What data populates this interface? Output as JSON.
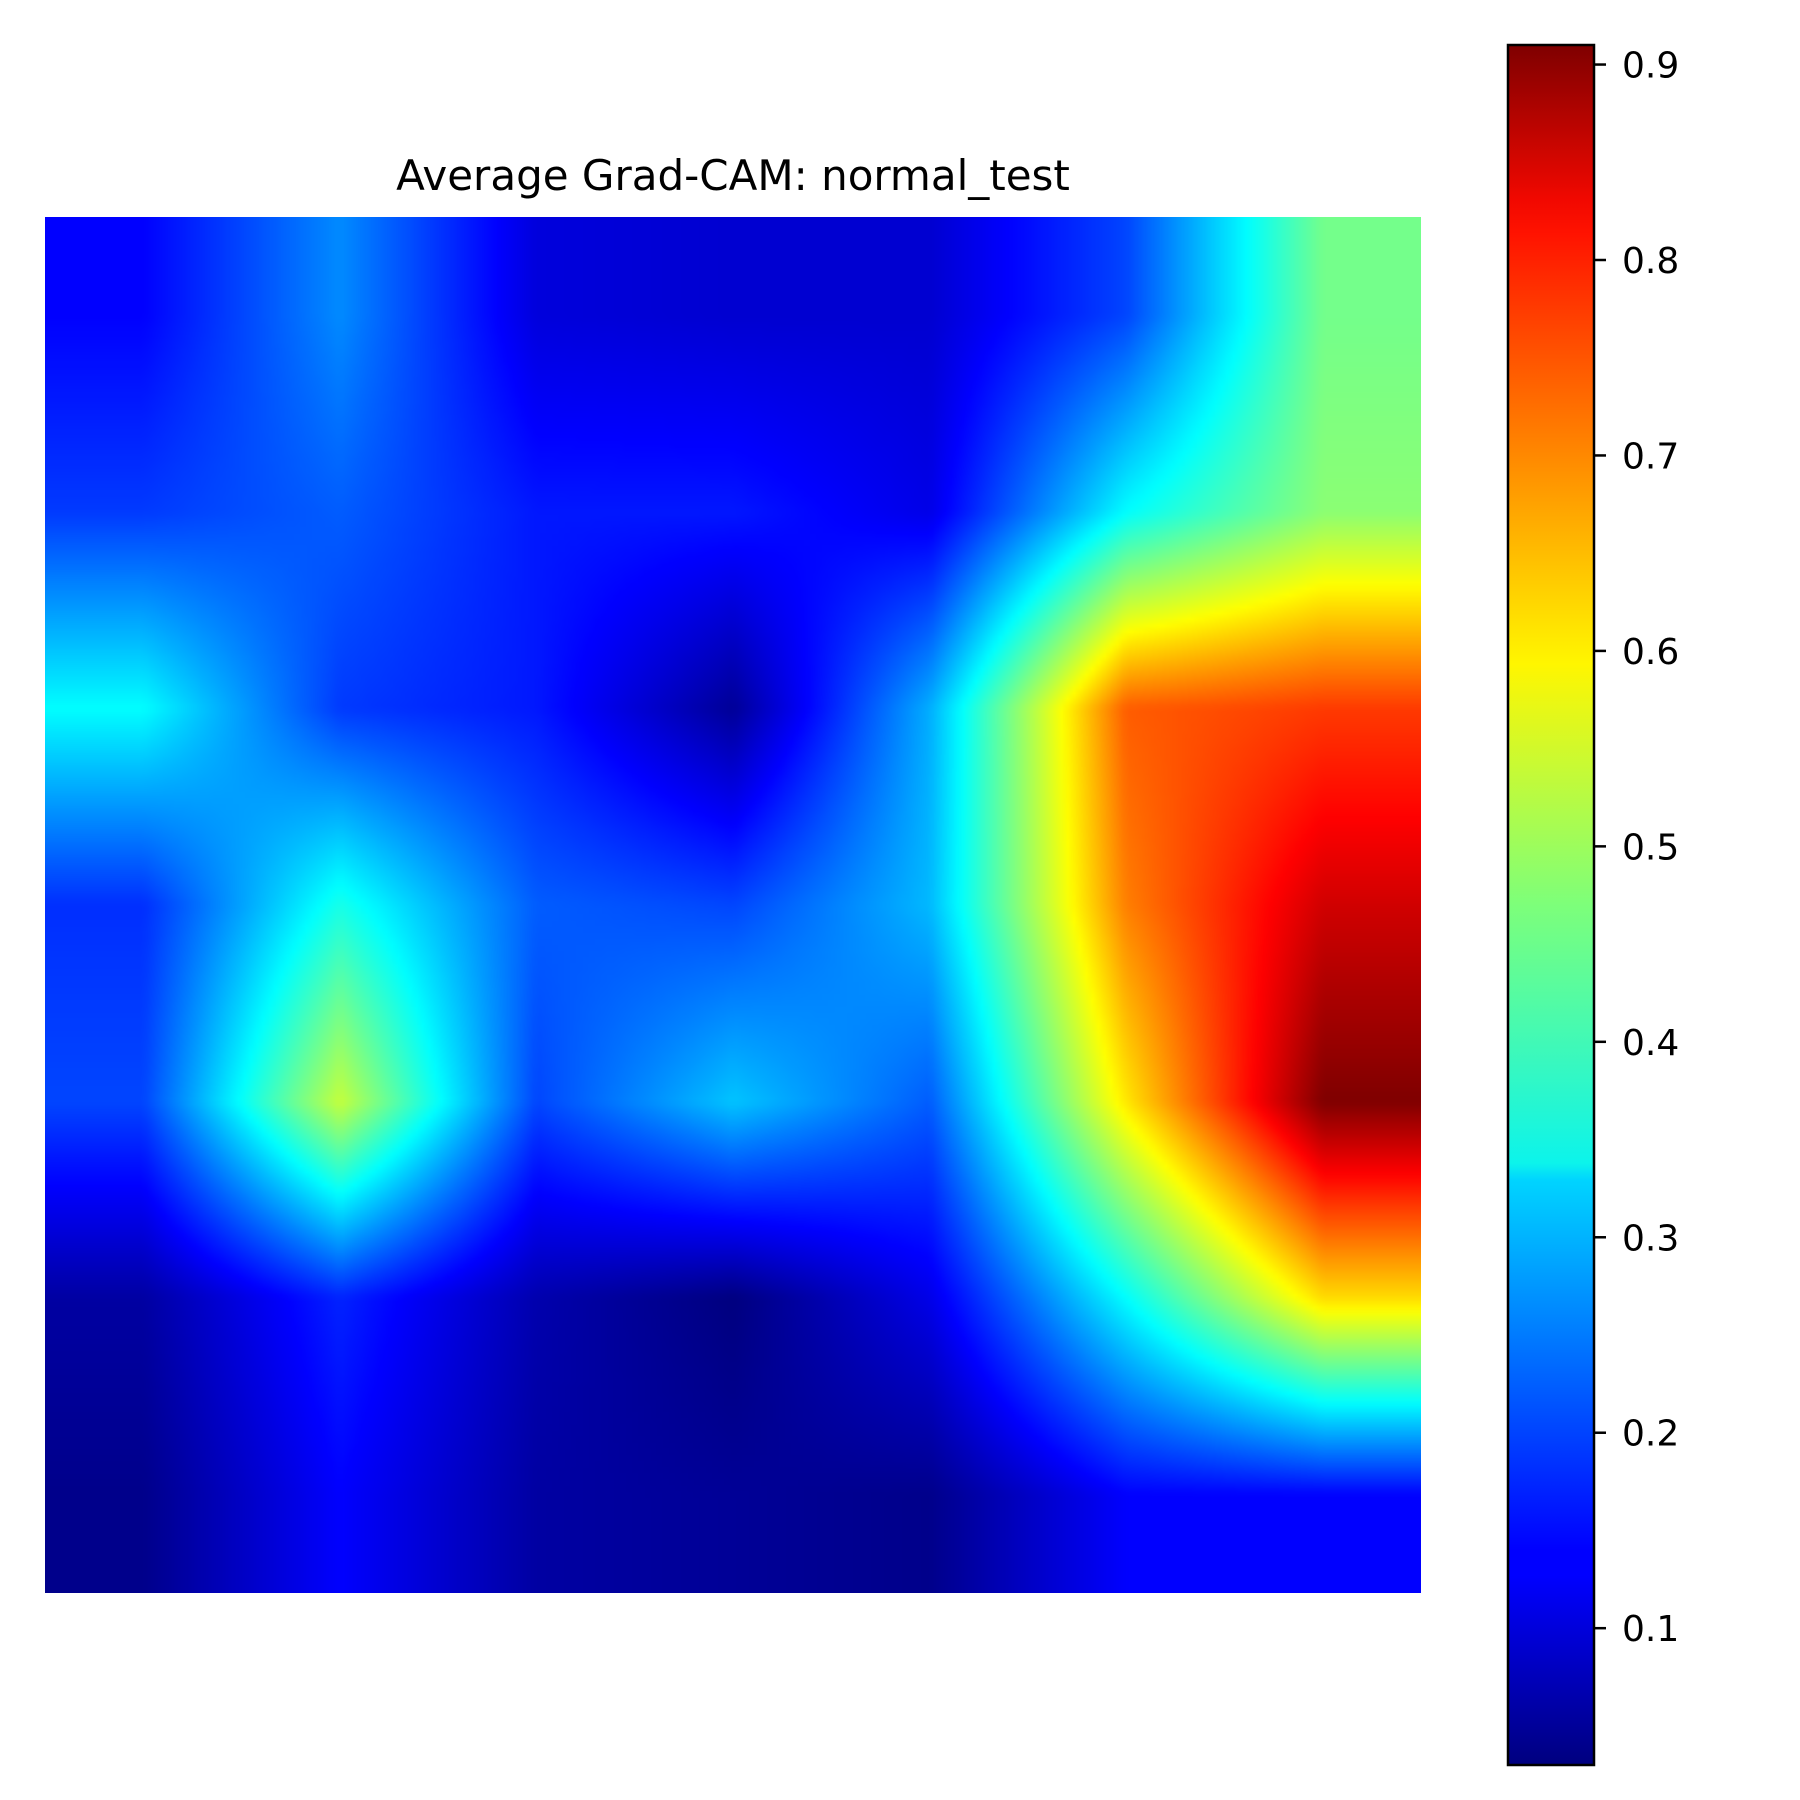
{
  "chart_data": {
    "type": "heatmap",
    "title": "Average Grad-CAM: normal_test",
    "xlabel": "",
    "ylabel": "",
    "axes_visible": false,
    "colormap": "jet",
    "colorbar": {
      "range": [
        0.03,
        0.91
      ],
      "ticks": [
        0.1,
        0.2,
        0.3,
        0.4,
        0.5,
        0.6,
        0.7,
        0.8,
        0.9
      ],
      "tick_labels": [
        "0.1",
        "0.2",
        "0.3",
        "0.4",
        "0.5",
        "0.6",
        "0.7",
        "0.8",
        "0.9"
      ],
      "placement": "right"
    },
    "grid_rows": 7,
    "grid_cols": 7,
    "values": [
      [
        0.14,
        0.26,
        0.11,
        0.1,
        0.1,
        0.2,
        0.46
      ],
      [
        0.19,
        0.22,
        0.16,
        0.16,
        0.12,
        0.36,
        0.48
      ],
      [
        0.36,
        0.19,
        0.16,
        0.05,
        0.29,
        0.72,
        0.75
      ],
      [
        0.18,
        0.38,
        0.22,
        0.2,
        0.3,
        0.69,
        0.84
      ],
      [
        0.2,
        0.53,
        0.2,
        0.31,
        0.22,
        0.6,
        0.91
      ],
      [
        0.06,
        0.17,
        0.07,
        0.03,
        0.12,
        0.36,
        0.61
      ],
      [
        0.04,
        0.14,
        0.06,
        0.05,
        0.04,
        0.14,
        0.14
      ]
    ]
  }
}
